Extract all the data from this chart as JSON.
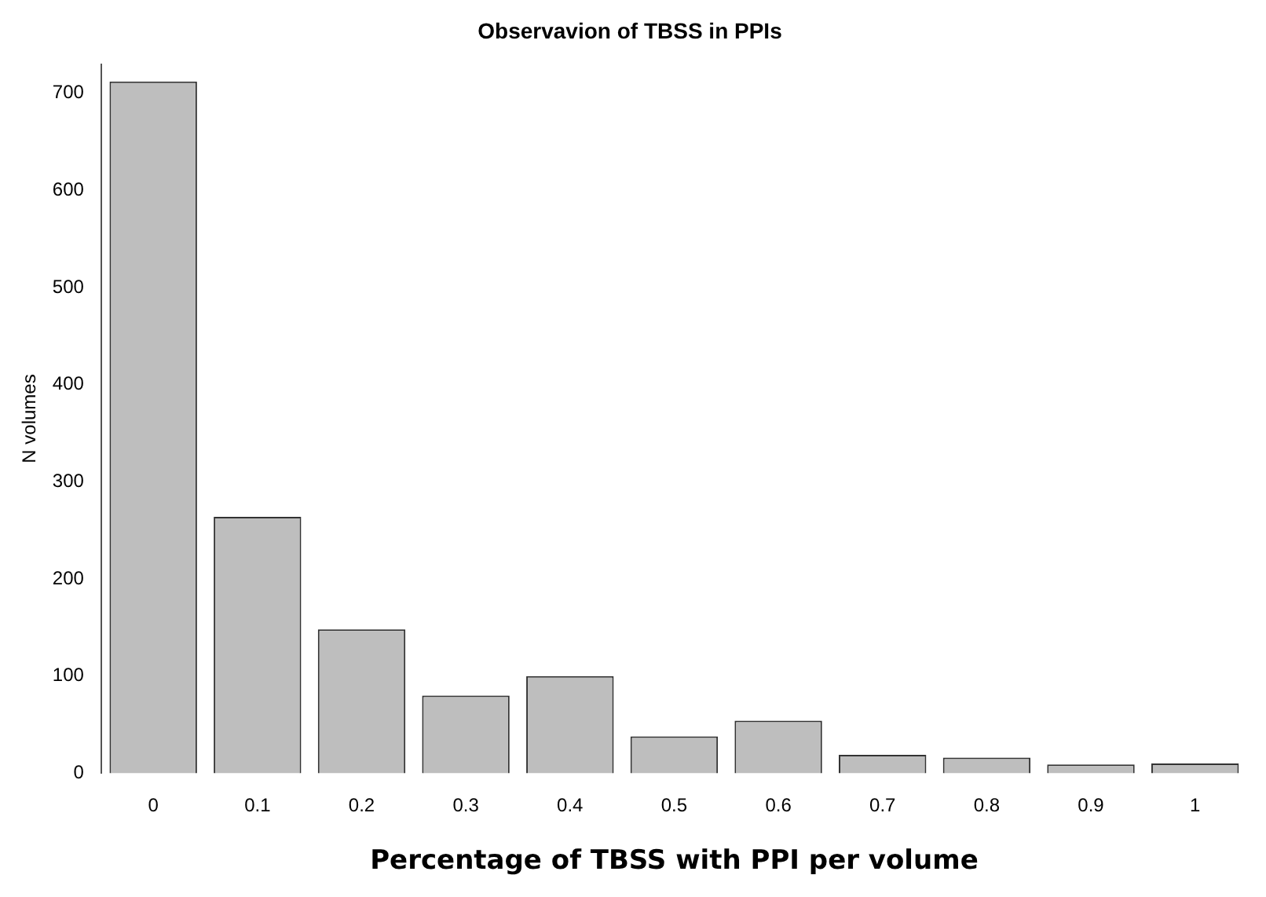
{
  "chart_data": {
    "type": "bar",
    "title": "Observavion of TBSS in PPIs",
    "xlabel": "Percentage of TBSS with PPI per volume",
    "ylabel": "N volumes",
    "categories": [
      "0",
      "0.1",
      "0.2",
      "0.3",
      "0.4",
      "0.5",
      "0.6",
      "0.7",
      "0.8",
      "0.9",
      "1"
    ],
    "values": [
      712,
      264,
      148,
      80,
      100,
      38,
      54,
      19,
      16,
      9,
      10
    ],
    "color": "#bebebe",
    "ylim": [
      0,
      730
    ],
    "yticks": [
      0,
      100,
      200,
      300,
      400,
      500,
      600,
      700
    ],
    "grid": false,
    "legend": false
  }
}
